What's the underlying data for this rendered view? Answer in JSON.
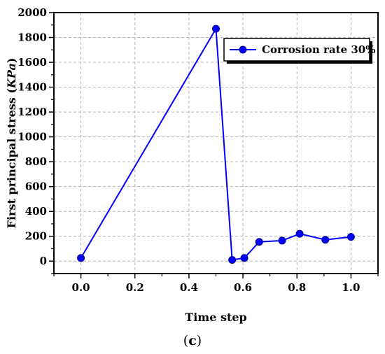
{
  "chart_data": {
    "type": "line",
    "xlabel": "Time step",
    "ylabel_main": "First principal stress (",
    "ylabel_unit": "KPa",
    "ylabel_close": ")",
    "xlim": [
      -0.1,
      1.1
    ],
    "ylim": [
      -100,
      2000
    ],
    "x_ticks": [
      0.0,
      0.2,
      0.4,
      0.6,
      0.8,
      1.0
    ],
    "x_tick_labels": [
      "0.0",
      "0.2",
      "0.4",
      "0.6",
      "0.8",
      "1.0"
    ],
    "y_ticks": [
      0,
      200,
      400,
      600,
      800,
      1000,
      1200,
      1400,
      1600,
      1800,
      2000
    ],
    "y_tick_labels": [
      "0",
      "200",
      "400",
      "600",
      "800",
      "1000",
      "1200",
      "1400",
      "1600",
      "1800",
      "2000"
    ],
    "grid": true,
    "legend_position": "top-right",
    "series": [
      {
        "name": "Corrosion rate 30%",
        "color": "#0000ff",
        "x": [
          0.0,
          0.5,
          0.56,
          0.605,
          0.66,
          0.745,
          0.81,
          0.905,
          1.0
        ],
        "y": [
          25,
          1870,
          10,
          25,
          155,
          165,
          220,
          172,
          195
        ]
      }
    ]
  },
  "panel_label_open": "(",
  "panel_label_letter": "c",
  "panel_label_close": ")"
}
